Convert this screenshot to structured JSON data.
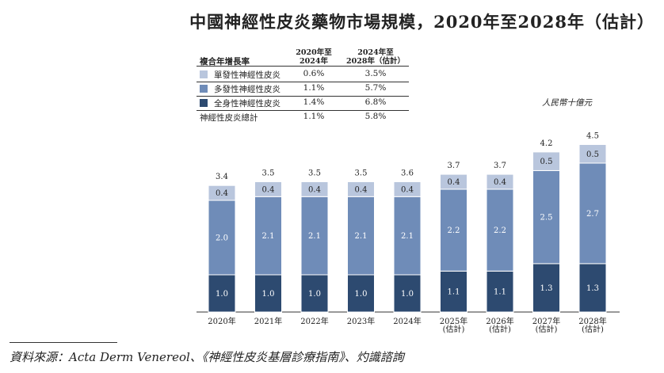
{
  "title": "中國神經性皮炎藥物市場規模，2020年至2028年（估計）",
  "unit_label": "人民幣十億元",
  "source": "資料來源：Acta Derm Venereol、《神經性皮炎基層診療指南》、灼識諮詢",
  "cagr_table": {
    "header_label": "複合年增長率",
    "col1_header": [
      "2020年至",
      "2024年"
    ],
    "col2_header": [
      "2024年至",
      "2028年（估計）"
    ],
    "rows": [
      {
        "label": "單發性神經性皮炎",
        "v1": "0.6%",
        "v2": "3.5%",
        "color": "#b9c6dd"
      },
      {
        "label": "多發性神經性皮炎",
        "v1": "1.1%",
        "v2": "5.7%",
        "color": "#6f8cb8"
      },
      {
        "label": "全身性神經性皮炎",
        "v1": "1.4%",
        "v2": "6.8%",
        "color": "#2d4a70"
      },
      {
        "label": "神經性皮炎總計",
        "v1": "1.1%",
        "v2": "5.8%",
        "color": null
      }
    ]
  },
  "chart_data": {
    "type": "bar",
    "stacked": true,
    "categories": [
      [
        "2020年"
      ],
      [
        "2021年"
      ],
      [
        "2022年"
      ],
      [
        "2023年"
      ],
      [
        "2024年"
      ],
      [
        "2025年",
        "(估計)"
      ],
      [
        "2026年",
        "(估計)"
      ],
      [
        "2027年",
        "(估計)"
      ],
      [
        "2028年",
        "(估計)"
      ]
    ],
    "series": [
      {
        "name": "全身性神經性皮炎",
        "color": "#2d4a70",
        "values": [
          1.0,
          1.0,
          1.0,
          1.0,
          1.0,
          1.1,
          1.1,
          1.3,
          1.3
        ],
        "labels": [
          "1.0",
          "1.0",
          "1.0",
          "1.0",
          "1.0",
          "1.1",
          "1.1",
          "1.3",
          "1.3"
        ]
      },
      {
        "name": "多發性神經性皮炎",
        "color": "#6f8cb8",
        "values": [
          2.0,
          2.1,
          2.1,
          2.1,
          2.1,
          2.2,
          2.2,
          2.5,
          2.7
        ],
        "labels": [
          "2.0",
          "2.1",
          "2.1",
          "2.1",
          "2.1",
          "2.2",
          "2.2",
          "2.5",
          "2.7"
        ]
      },
      {
        "name": "單發性神經性皮炎",
        "color": "#b9c6dd",
        "values": [
          0.4,
          0.4,
          0.4,
          0.4,
          0.4,
          0.4,
          0.4,
          0.5,
          0.5
        ],
        "labels": [
          "0.4",
          "0.4",
          "0.4",
          "0.4",
          "0.4",
          "0.4",
          "0.4",
          "0.5",
          "0.5"
        ]
      }
    ],
    "totals": [
      3.4,
      3.5,
      3.5,
      3.5,
      3.6,
      3.7,
      3.7,
      4.2,
      4.5
    ],
    "total_labels": [
      "3.4",
      "3.5",
      "3.5",
      "3.5",
      "3.6",
      "3.7",
      "3.7",
      "4.2",
      "4.5"
    ],
    "xlabel": "",
    "ylabel": "",
    "grid": false,
    "legend": "top-left table"
  }
}
